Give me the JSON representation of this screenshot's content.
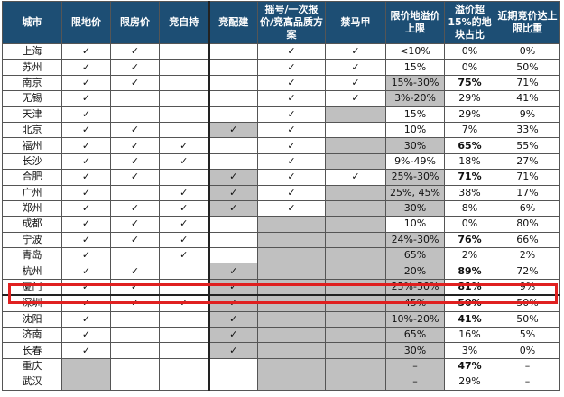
{
  "headers": [
    "城市",
    "限地价",
    "限房价",
    "竞自持",
    "竞配建",
    "摇号/一次报价/竞高品质方案",
    "禁马甲",
    "限价地溢价上限",
    "溢价超15%的地块占比",
    "近期竞价达上限比重"
  ],
  "check": "✓",
  "colors": {
    "header": "#1d4e74",
    "shade": "#c0c0c0",
    "highlight": "#e02020"
  },
  "highlighted_city": "厦门",
  "rows": [
    {
      "city": "上海",
      "c": [
        1,
        1,
        0,
        0,
        1,
        1
      ],
      "cap": "<10%",
      "over": "0%",
      "recent": "0%",
      "bold": false,
      "shaded": []
    },
    {
      "city": "苏州",
      "c": [
        1,
        1,
        0,
        0,
        1,
        1
      ],
      "cap": "15%",
      "over": "0%",
      "recent": "50%",
      "bold": false,
      "shaded": []
    },
    {
      "city": "南京",
      "c": [
        1,
        1,
        0,
        0,
        1,
        1
      ],
      "cap": "15%-30%",
      "over": "75%",
      "recent": "71%",
      "bold": true,
      "shaded": [
        7
      ]
    },
    {
      "city": "无锡",
      "c": [
        1,
        0,
        0,
        0,
        1,
        1
      ],
      "cap": "3%-20%",
      "over": "29%",
      "recent": "41%",
      "bold": false,
      "shaded": [
        7
      ]
    },
    {
      "city": "天津",
      "c": [
        1,
        0,
        0,
        0,
        1,
        0
      ],
      "cap": "15%",
      "over": "29%",
      "recent": "9%",
      "bold": false,
      "shaded": [
        6
      ]
    },
    {
      "city": "北京",
      "c": [
        1,
        1,
        0,
        1,
        1,
        0
      ],
      "cap": "10%",
      "over": "7%",
      "recent": "33%",
      "bold": false,
      "shaded": [
        4
      ]
    },
    {
      "city": "福州",
      "c": [
        1,
        1,
        1,
        0,
        1,
        0
      ],
      "cap": "30%",
      "over": "65%",
      "recent": "55%",
      "bold": true,
      "shaded": [
        6,
        7
      ]
    },
    {
      "city": "长沙",
      "c": [
        1,
        1,
        1,
        0,
        1,
        0
      ],
      "cap": "9%-49%",
      "over": "18%",
      "recent": "27%",
      "bold": false,
      "shaded": [
        6
      ]
    },
    {
      "city": "合肥",
      "c": [
        1,
        1,
        0,
        1,
        1,
        1
      ],
      "cap": "25%-30%",
      "over": "71%",
      "recent": "71%",
      "bold": true,
      "shaded": [
        4,
        7
      ]
    },
    {
      "city": "广州",
      "c": [
        1,
        0,
        1,
        1,
        1,
        0
      ],
      "cap": "25%, 45%",
      "over": "38%",
      "recent": "17%",
      "bold": false,
      "shaded": [
        4,
        6,
        7
      ]
    },
    {
      "city": "郑州",
      "c": [
        1,
        1,
        1,
        1,
        1,
        0
      ],
      "cap": "30%",
      "over": "8%",
      "recent": "6%",
      "bold": false,
      "shaded": [
        4,
        6,
        7
      ]
    },
    {
      "city": "成都",
      "c": [
        1,
        1,
        1,
        0,
        0,
        0
      ],
      "cap": "10%",
      "over": "0%",
      "recent": "80%",
      "bold": false,
      "shaded": [
        5,
        6
      ]
    },
    {
      "city": "宁波",
      "c": [
        1,
        1,
        1,
        0,
        0,
        0
      ],
      "cap": "24%-30%",
      "over": "76%",
      "recent": "66%",
      "bold": true,
      "shaded": [
        5,
        6,
        7
      ]
    },
    {
      "city": "青岛",
      "c": [
        1,
        0,
        1,
        0,
        0,
        0
      ],
      "cap": "65%",
      "over": "2%",
      "recent": "2%",
      "bold": false,
      "shaded": [
        5,
        6,
        7
      ]
    },
    {
      "city": "杭州",
      "c": [
        1,
        1,
        0,
        1,
        0,
        0
      ],
      "cap": "20%",
      "over": "89%",
      "recent": "72%",
      "bold": true,
      "shaded": [
        4,
        5,
        6,
        7
      ]
    },
    {
      "city": "厦门",
      "c": [
        1,
        1,
        0,
        1,
        0,
        0
      ],
      "cap": "25%-50%",
      "over": "81%",
      "recent": "9%",
      "bold": true,
      "shaded": [
        4,
        5,
        6,
        7
      ]
    },
    {
      "city": "深圳",
      "c": [
        1,
        1,
        1,
        1,
        0,
        0
      ],
      "cap": "45%",
      "over": "50%",
      "recent": "50%",
      "bold": true,
      "shaded": [
        4,
        5,
        6,
        7
      ]
    },
    {
      "city": "沈阳",
      "c": [
        1,
        0,
        0,
        1,
        0,
        0
      ],
      "cap": "10%-20%",
      "over": "41%",
      "recent": "50%",
      "bold": true,
      "shaded": [
        4,
        5,
        6,
        7
      ]
    },
    {
      "city": "济南",
      "c": [
        1,
        0,
        0,
        1,
        0,
        0
      ],
      "cap": "65%",
      "over": "16%",
      "recent": "5%",
      "bold": false,
      "shaded": [
        4,
        5,
        6,
        7
      ]
    },
    {
      "city": "长春",
      "c": [
        1,
        0,
        0,
        1,
        0,
        0
      ],
      "cap": "30%",
      "over": "3%",
      "recent": "0%",
      "bold": false,
      "shaded": [
        4,
        5,
        6,
        7
      ]
    },
    {
      "city": "重庆",
      "c": [
        0,
        0,
        0,
        0,
        0,
        0
      ],
      "cap": "–",
      "over": "47%",
      "recent": "–",
      "bold": true,
      "shaded": [
        1,
        5,
        6,
        7
      ]
    },
    {
      "city": "武汉",
      "c": [
        0,
        0,
        0,
        0,
        0,
        0
      ],
      "cap": "–",
      "over": "29%",
      "recent": "–",
      "bold": false,
      "shaded": [
        1,
        5,
        6,
        7
      ]
    }
  ]
}
